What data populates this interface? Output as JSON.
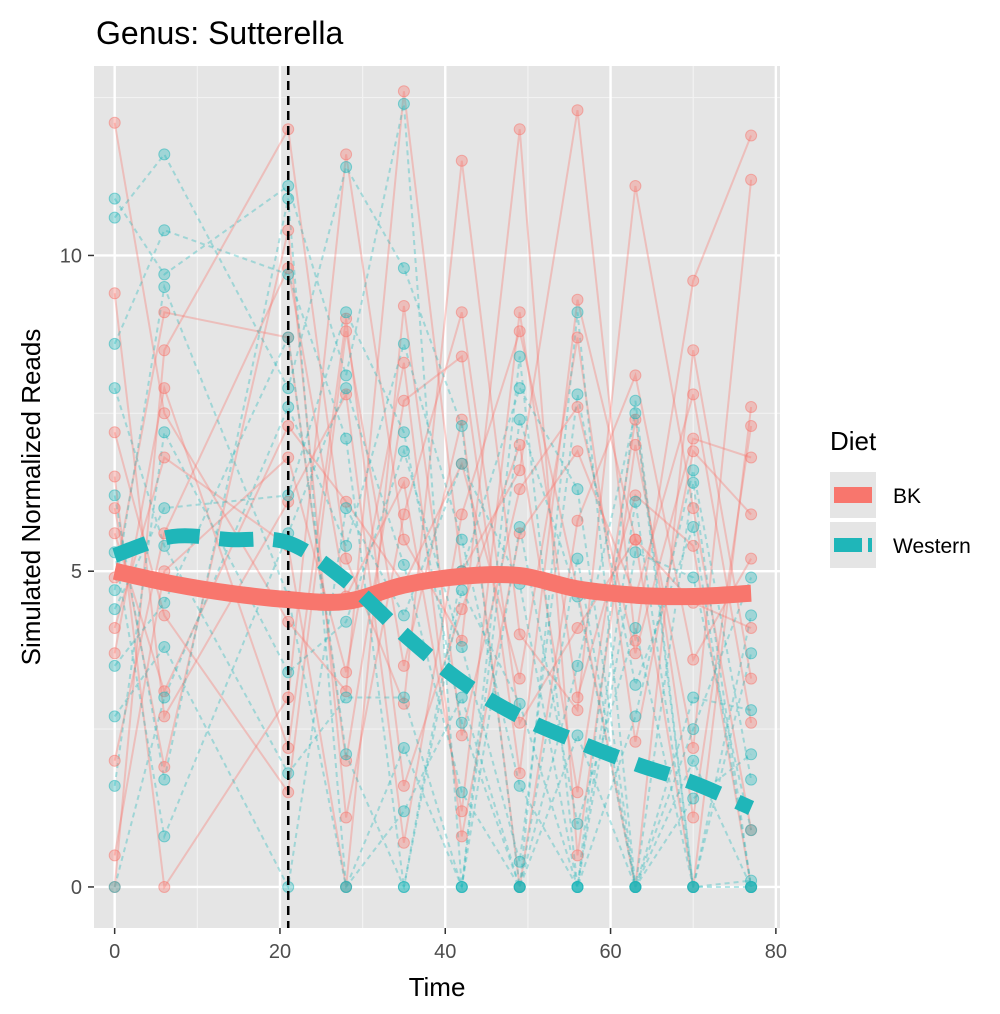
{
  "chart_data": {
    "type": "line",
    "title": "Genus: Sutterella",
    "xlabel": "Time",
    "ylabel": "Simulated Normalized Reads",
    "xlim": [
      -2.5,
      80.5
    ],
    "ylim": [
      -0.65,
      13.0
    ],
    "x_ticks": [
      0,
      20,
      40,
      60,
      80
    ],
    "y_ticks": [
      0,
      5,
      10
    ],
    "x_tick_labels": [
      "0",
      "20",
      "40",
      "60",
      "80"
    ],
    "y_tick_labels": [
      "0",
      "5",
      "10"
    ],
    "grid": true,
    "background": "#e5e5e5",
    "legend": {
      "title": "Diet",
      "position": "right",
      "entries": [
        {
          "label": "BK",
          "color": "#f8766d",
          "linetype": "solid"
        },
        {
          "label": "Western",
          "color": "#1fb6b9",
          "linetype": "dashed"
        }
      ]
    },
    "timepoints": [
      0,
      6,
      21,
      28,
      35,
      42,
      49,
      56,
      63,
      70,
      77
    ],
    "vline_x": 21,
    "series": [
      {
        "name": "BK",
        "color": "#f8766d",
        "trend_x": [
          0,
          7,
          14,
          21,
          28,
          35,
          42,
          49,
          56,
          63,
          70,
          77
        ],
        "trend_y": [
          5.0,
          4.8,
          4.65,
          4.55,
          4.52,
          4.78,
          4.92,
          4.93,
          4.72,
          4.62,
          4.6,
          4.65
        ],
        "subject_values": [
          [
            12.1,
            7.5,
            4.2,
            3.1,
            12.6,
            5.0,
            6.6,
            12.3,
            3.9,
            9.6,
            11.9
          ],
          [
            0.0,
            8.5,
            12.0,
            5.2,
            2.9,
            11.5,
            4.0,
            2.8,
            11.1,
            6.0,
            0.9
          ],
          [
            6.5,
            0.0,
            3.0,
            11.6,
            5.5,
            3.9,
            12.0,
            0.5,
            7.0,
            2.2,
            11.2
          ],
          [
            4.9,
            9.1,
            8.7,
            2.0,
            7.7,
            8.4,
            1.8,
            9.3,
            5.5,
            0.0,
            7.6
          ],
          [
            9.4,
            2.7,
            6.1,
            7.8,
            0.7,
            5.9,
            8.8,
            4.7,
            0.0,
            8.5,
            3.3
          ],
          [
            4.1,
            6.8,
            5.4,
            0.0,
            9.2,
            2.4,
            6.3,
            7.6,
            3.7,
            7.1,
            6.8
          ],
          [
            7.2,
            4.3,
            1.5,
            8.8,
            3.5,
            7.4,
            0.0,
            5.8,
            8.1,
            3.6,
            5.2
          ],
          [
            2.0,
            5.6,
            9.8,
            4.6,
            6.4,
            1.2,
            9.1,
            3.0,
            6.2,
            5.4,
            0.0
          ],
          [
            5.6,
            3.1,
            7.3,
            6.1,
            4.8,
            6.7,
            3.3,
            8.7,
            2.3,
            6.9,
            5.9
          ],
          [
            3.7,
            7.9,
            2.2,
            9.0,
            1.6,
            4.4,
            7.0,
            1.5,
            7.4,
            1.1,
            7.3
          ],
          [
            0.5,
            5.0,
            6.8,
            3.4,
            8.3,
            0.8,
            5.6,
            6.9,
            4.6,
            7.8,
            2.6
          ],
          [
            6.0,
            1.9,
            10.4,
            1.1,
            5.9,
            9.1,
            2.6,
            4.1,
            5.5,
            4.5,
            4.1
          ]
        ]
      },
      {
        "name": "Western",
        "color": "#1fb6b9",
        "trend_x": [
          0,
          7,
          14,
          21,
          28,
          35,
          42,
          49,
          56,
          63,
          70,
          77
        ],
        "trend_y": [
          5.25,
          5.55,
          5.5,
          5.45,
          4.85,
          4.0,
          3.25,
          2.7,
          2.3,
          1.95,
          1.65,
          1.25
        ],
        "subject_values": [
          [
            10.9,
            9.7,
            11.1,
            8.1,
            12.4,
            0.0,
            8.4,
            0.0,
            7.7,
            0.0,
            0.1
          ],
          [
            10.6,
            11.6,
            7.9,
            11.4,
            9.8,
            7.3,
            0.0,
            9.1,
            0.0,
            6.4,
            0.0
          ],
          [
            8.6,
            10.4,
            9.7,
            7.1,
            0.0,
            5.0,
            7.9,
            6.3,
            0.0,
            2.5,
            4.9
          ],
          [
            4.4,
            6.0,
            6.2,
            9.1,
            7.2,
            2.6,
            0.0,
            3.5,
            7.5,
            0.0,
            3.7
          ],
          [
            2.7,
            3.8,
            0.0,
            6.0,
            4.3,
            6.7,
            4.8,
            0.0,
            5.3,
            4.9,
            0.9
          ],
          [
            6.2,
            1.7,
            10.9,
            0.0,
            2.2,
            0.0,
            7.4,
            4.6,
            0.0,
            1.4,
            2.1
          ],
          [
            1.6,
            7.2,
            3.4,
            4.2,
            6.9,
            3.8,
            0.4,
            7.8,
            3.2,
            5.7,
            0.0
          ],
          [
            3.5,
            4.5,
            8.7,
            2.1,
            0.0,
            4.7,
            2.9,
            0.0,
            6.1,
            0.0,
            4.3
          ],
          [
            5.3,
            0.8,
            5.6,
            7.9,
            5.1,
            1.5,
            0.0,
            2.4,
            0.0,
            3.0,
            2.8
          ],
          [
            7.9,
            5.4,
            1.8,
            3.0,
            3.0,
            0.0,
            5.7,
            1.0,
            4.1,
            0.0,
            0.0
          ],
          [
            0.0,
            3.0,
            7.6,
            5.4,
            8.6,
            5.5,
            1.6,
            0.0,
            2.7,
            6.6,
            1.7
          ],
          [
            4.7,
            9.5,
            4.6,
            0.0,
            1.2,
            3.0,
            0.0,
            5.2,
            0.0,
            2.0,
            0.0
          ]
        ]
      }
    ]
  }
}
